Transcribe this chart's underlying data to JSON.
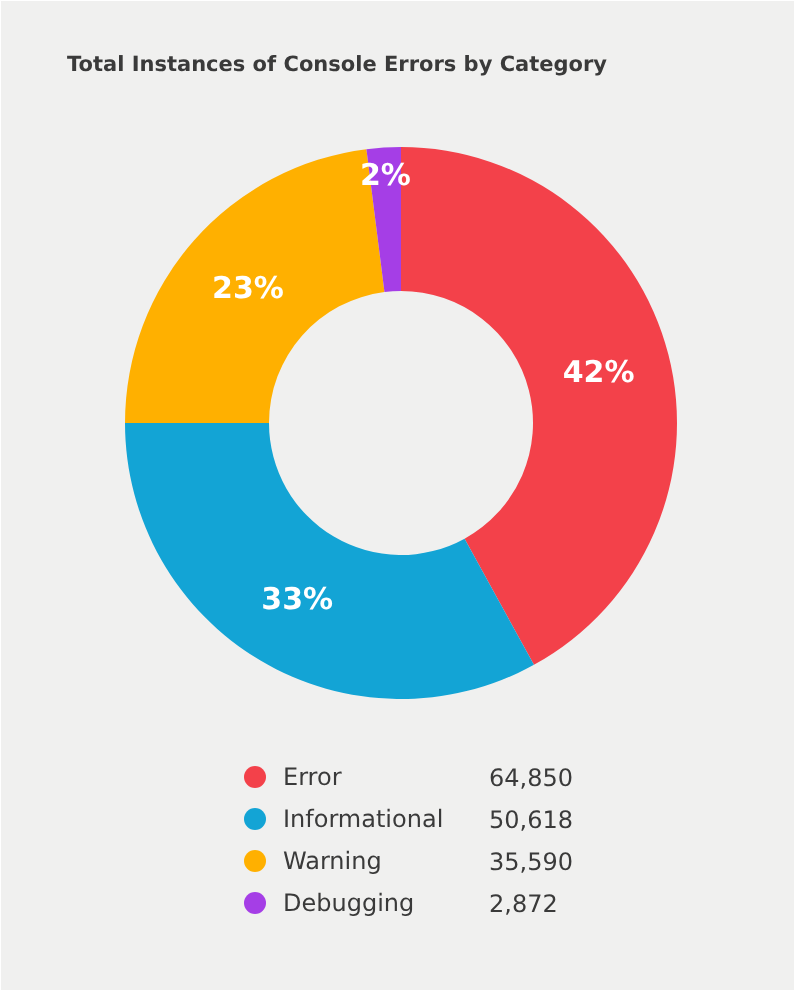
{
  "chart_data": {
    "type": "donut",
    "title": "Total Instances of Console Errors by Category",
    "categories": [
      "Error",
      "Informational",
      "Warning",
      "Debugging"
    ],
    "values": [
      42,
      33,
      23,
      2
    ],
    "colors": [
      "#f3414a",
      "#13a4d5",
      "#ffb000",
      "#a53ee6"
    ],
    "value_labels": [
      "42%",
      "33%",
      "23%",
      "2%"
    ],
    "annotations": [
      "64,850",
      "50,618",
      "35,590",
      "2,872"
    ],
    "legend": "bottom"
  }
}
